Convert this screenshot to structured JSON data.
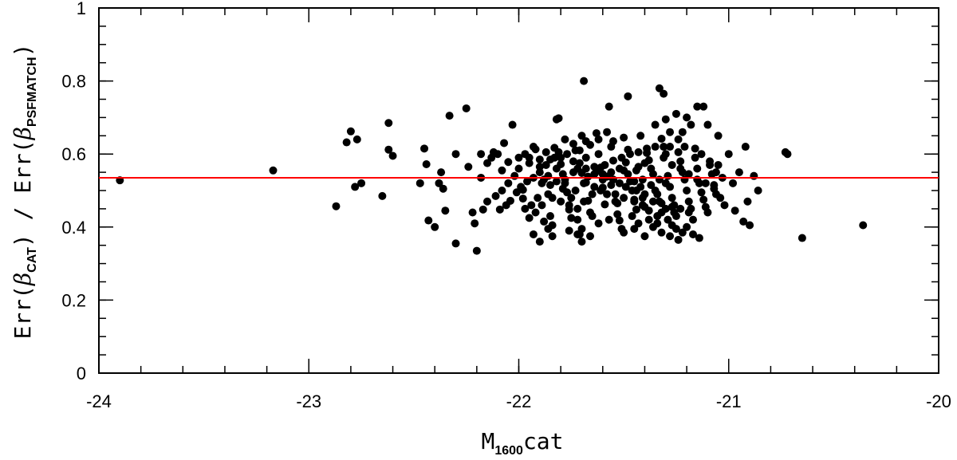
{
  "chart_data": {
    "type": "scatter",
    "xlabel": {
      "main": "M",
      "sub": "1600",
      "suffix": "cat"
    },
    "ylabel": {
      "p1": "Err(",
      "beta1": "β",
      "sub1": "CAT",
      "p2": ") / Err(",
      "beta2": "β",
      "sub2": "PSFMATCH",
      "p3": ")"
    },
    "xlim": [
      -24,
      -20
    ],
    "ylim": [
      0,
      1
    ],
    "xticks": [
      -24,
      -23,
      -22,
      -21,
      -20
    ],
    "xtick_labels": [
      "-24",
      "-23",
      "-22",
      "-21",
      "-20"
    ],
    "yticks": [
      0,
      0.2,
      0.4,
      0.6,
      0.8,
      1
    ],
    "ytick_labels": [
      "0",
      "0.2",
      "0.4",
      "0.6",
      "0.8",
      "1"
    ],
    "grid": false,
    "reference_line": {
      "y": 0.535,
      "color": "#ff0000"
    },
    "marker_color": "#000000",
    "points": [
      [
        -23.9,
        0.528
      ],
      [
        -23.17,
        0.555
      ],
      [
        -22.87,
        0.457
      ],
      [
        -22.8,
        0.662
      ],
      [
        -22.82,
        0.632
      ],
      [
        -22.77,
        0.64
      ],
      [
        -22.75,
        0.52
      ],
      [
        -22.78,
        0.51
      ],
      [
        -22.65,
        0.485
      ],
      [
        -22.62,
        0.685
      ],
      [
        -22.62,
        0.612
      ],
      [
        -22.6,
        0.595
      ],
      [
        -22.47,
        0.52
      ],
      [
        -22.45,
        0.615
      ],
      [
        -22.44,
        0.572
      ],
      [
        -22.43,
        0.418
      ],
      [
        -22.4,
        0.4
      ],
      [
        -22.38,
        0.52
      ],
      [
        -22.37,
        0.55
      ],
      [
        -22.36,
        0.505
      ],
      [
        -22.35,
        0.445
      ],
      [
        -22.33,
        0.705
      ],
      [
        -22.3,
        0.6
      ],
      [
        -22.3,
        0.355
      ],
      [
        -22.25,
        0.725
      ],
      [
        -22.24,
        0.565
      ],
      [
        -22.22,
        0.44
      ],
      [
        -22.21,
        0.41
      ],
      [
        -22.2,
        0.335
      ],
      [
        -22.18,
        0.535
      ],
      [
        -22.17,
        0.448
      ],
      [
        -22.15,
        0.47
      ],
      [
        -22.13,
        0.59
      ],
      [
        -22.12,
        0.605
      ],
      [
        -22.11,
        0.485
      ],
      [
        -22.08,
        0.555
      ],
      [
        -22.07,
        0.63
      ],
      [
        -22.05,
        0.578
      ],
      [
        -22.03,
        0.68
      ],
      [
        -22.0,
        0.56
      ],
      [
        -21.98,
        0.502
      ],
      [
        -21.97,
        0.45
      ],
      [
        -21.95,
        0.425
      ],
      [
        -21.93,
        0.62
      ],
      [
        -21.92,
        0.613
      ],
      [
        -21.9,
        0.585
      ],
      [
        -21.88,
        0.53
      ],
      [
        -21.87,
        0.605
      ],
      [
        -21.86,
        0.49
      ],
      [
        -21.85,
        0.43
      ],
      [
        -21.84,
        0.405
      ],
      [
        -21.83,
        0.617
      ],
      [
        -21.82,
        0.695
      ],
      [
        -21.81,
        0.698
      ],
      [
        -21.8,
        0.572
      ],
      [
        -21.79,
        0.545
      ],
      [
        -21.78,
        0.52
      ],
      [
        -21.77,
        0.495
      ],
      [
        -21.76,
        0.448
      ],
      [
        -21.75,
        0.425
      ],
      [
        -21.73,
        0.61
      ],
      [
        -21.72,
        0.56
      ],
      [
        -21.71,
        0.38
      ],
      [
        -21.7,
        0.395
      ],
      [
        -21.7,
        0.548
      ],
      [
        -21.69,
        0.8
      ],
      [
        -21.68,
        0.522
      ],
      [
        -21.67,
        0.472
      ],
      [
        -21.66,
        0.375
      ],
      [
        -21.65,
        0.43
      ],
      [
        -21.64,
        0.51
      ],
      [
        -21.63,
        0.657
      ],
      [
        -21.62,
        0.6
      ],
      [
        -21.61,
        0.563
      ],
      [
        -21.6,
        0.508
      ],
      [
        -21.59,
        0.462
      ],
      [
        -21.58,
        0.538
      ],
      [
        -21.57,
        0.73
      ],
      [
        -21.56,
        0.62
      ],
      [
        -21.55,
        0.53
      ],
      [
        -21.54,
        0.49
      ],
      [
        -21.53,
        0.465
      ],
      [
        -21.52,
        0.418
      ],
      [
        -21.51,
        0.395
      ],
      [
        -21.5,
        0.555
      ],
      [
        -21.49,
        0.577
      ],
      [
        -21.48,
        0.612
      ],
      [
        -21.47,
        0.525
      ],
      [
        -21.46,
        0.5
      ],
      [
        -21.45,
        0.47
      ],
      [
        -21.44,
        0.448
      ],
      [
        -21.43,
        0.565
      ],
      [
        -21.42,
        0.51
      ],
      [
        -21.41,
        0.48
      ],
      [
        -21.4,
        0.455
      ],
      [
        -21.39,
        0.603
      ],
      [
        -21.38,
        0.583
      ],
      [
        -21.37,
        0.56
      ],
      [
        -21.36,
        0.545
      ],
      [
        -21.35,
        0.5
      ],
      [
        -21.34,
        0.49
      ],
      [
        -21.33,
        0.47
      ],
      [
        -21.32,
        0.44
      ],
      [
        -21.31,
        0.62
      ],
      [
        -21.3,
        0.6
      ],
      [
        -21.3,
        0.52
      ],
      [
        -21.29,
        0.54
      ],
      [
        -21.28,
        0.51
      ],
      [
        -21.27,
        0.48
      ],
      [
        -21.26,
        0.46
      ],
      [
        -21.25,
        0.43
      ],
      [
        -21.24,
        0.605
      ],
      [
        -21.23,
        0.58
      ],
      [
        -21.22,
        0.55
      ],
      [
        -21.21,
        0.53
      ],
      [
        -21.2,
        0.5
      ],
      [
        -21.19,
        0.47
      ],
      [
        -21.18,
        0.45
      ],
      [
        -21.17,
        0.42
      ],
      [
        -21.16,
        0.59
      ],
      [
        -21.15,
        0.56
      ],
      [
        -21.14,
        0.52
      ],
      [
        -21.13,
        0.495
      ],
      [
        -21.12,
        0.475
      ],
      [
        -21.11,
        0.455
      ],
      [
        -21.1,
        0.44
      ],
      [
        -21.09,
        0.58
      ],
      [
        -21.08,
        0.545
      ],
      [
        -21.07,
        0.515
      ],
      [
        -21.06,
        0.49
      ],
      [
        -21.05,
        0.57
      ],
      [
        -21.04,
        0.48
      ],
      [
        -21.03,
        0.535
      ],
      [
        -21.02,
        0.46
      ],
      [
        -21.0,
        0.6
      ],
      [
        -20.98,
        0.52
      ],
      [
        -20.97,
        0.445
      ],
      [
        -20.95,
        0.55
      ],
      [
        -20.93,
        0.415
      ],
      [
        -20.92,
        0.62
      ],
      [
        -20.91,
        0.47
      ],
      [
        -20.9,
        0.405
      ],
      [
        -20.88,
        0.54
      ],
      [
        -20.86,
        0.5
      ],
      [
        -20.72,
        0.6
      ],
      [
        -20.73,
        0.605
      ],
      [
        -20.65,
        0.37
      ],
      [
        -20.36,
        0.405
      ],
      [
        -21.33,
        0.78
      ],
      [
        -21.31,
        0.765
      ],
      [
        -21.48,
        0.758
      ],
      [
        -21.7,
        0.65
      ],
      [
        -21.68,
        0.635
      ],
      [
        -21.55,
        0.635
      ],
      [
        -21.5,
        0.645
      ],
      [
        -21.35,
        0.68
      ],
      [
        -21.3,
        0.695
      ],
      [
        -21.25,
        0.71
      ],
      [
        -21.2,
        0.7
      ],
      [
        -21.15,
        0.73
      ],
      [
        -21.12,
        0.73
      ],
      [
        -21.18,
        0.68
      ],
      [
        -21.22,
        0.66
      ],
      [
        -21.1,
        0.68
      ],
      [
        -21.05,
        0.65
      ],
      [
        -21.28,
        0.66
      ],
      [
        -21.32,
        0.642
      ],
      [
        -21.42,
        0.65
      ],
      [
        -21.58,
        0.66
      ],
      [
        -21.62,
        0.64
      ],
      [
        -21.66,
        0.625
      ],
      [
        -21.74,
        0.628
      ],
      [
        -21.78,
        0.64
      ],
      [
        -21.8,
        0.59
      ],
      [
        -21.85,
        0.585
      ],
      [
        -21.9,
        0.565
      ],
      [
        -21.95,
        0.575
      ],
      [
        -22.0,
        0.59
      ],
      [
        -22.02,
        0.54
      ],
      [
        -22.05,
        0.52
      ],
      [
        -22.08,
        0.5
      ],
      [
        -21.98,
        0.478
      ],
      [
        -21.94,
        0.46
      ],
      [
        -21.92,
        0.44
      ],
      [
        -21.88,
        0.415
      ],
      [
        -21.86,
        0.395
      ],
      [
        -21.84,
        0.375
      ],
      [
        -21.76,
        0.39
      ],
      [
        -21.72,
        0.42
      ],
      [
        -21.66,
        0.44
      ],
      [
        -21.62,
        0.41
      ],
      [
        -21.57,
        0.42
      ],
      [
        -21.53,
        0.435
      ],
      [
        -21.46,
        0.43
      ],
      [
        -21.43,
        0.41
      ],
      [
        -21.38,
        0.42
      ],
      [
        -21.34,
        0.41
      ],
      [
        -21.29,
        0.42
      ],
      [
        -21.27,
        0.405
      ],
      [
        -21.25,
        0.395
      ],
      [
        -21.22,
        0.385
      ],
      [
        -21.2,
        0.4
      ],
      [
        -21.17,
        0.38
      ],
      [
        -21.14,
        0.37
      ],
      [
        -21.19,
        0.44
      ],
      [
        -21.23,
        0.45
      ],
      [
        -21.27,
        0.455
      ],
      [
        -21.32,
        0.465
      ],
      [
        -21.36,
        0.47
      ],
      [
        -21.4,
        0.49
      ],
      [
        -21.44,
        0.5
      ],
      [
        -21.49,
        0.51
      ],
      [
        -21.52,
        0.52
      ],
      [
        -21.56,
        0.515
      ],
      [
        -21.6,
        0.53
      ],
      [
        -21.64,
        0.545
      ],
      [
        -21.68,
        0.56
      ],
      [
        -21.71,
        0.575
      ],
      [
        -21.74,
        0.58
      ],
      [
        -21.77,
        0.6
      ],
      [
        -21.81,
        0.605
      ],
      [
        -21.83,
        0.59
      ],
      [
        -21.87,
        0.57
      ],
      [
        -21.9,
        0.55
      ],
      [
        -21.93,
        0.535
      ],
      [
        -21.96,
        0.525
      ],
      [
        -21.99,
        0.51
      ],
      [
        -22.01,
        0.495
      ],
      [
        -22.04,
        0.472
      ],
      [
        -22.06,
        0.46
      ],
      [
        -22.09,
        0.448
      ],
      [
        -21.97,
        0.6
      ],
      [
        -21.95,
        0.59
      ],
      [
        -21.91,
        0.48
      ],
      [
        -21.89,
        0.46
      ],
      [
        -21.85,
        0.515
      ],
      [
        -21.82,
        0.525
      ],
      [
        -21.79,
        0.505
      ],
      [
        -21.75,
        0.48
      ],
      [
        -21.73,
        0.5
      ],
      [
        -21.69,
        0.52
      ],
      [
        -21.67,
        0.538
      ],
      [
        -21.63,
        0.552
      ],
      [
        -21.59,
        0.57
      ],
      [
        -21.55,
        0.582
      ],
      [
        -21.51,
        0.59
      ],
      [
        -21.47,
        0.6
      ],
      [
        -21.43,
        0.605
      ],
      [
        -21.39,
        0.615
      ],
      [
        -21.35,
        0.62
      ],
      [
        -21.31,
        0.59
      ],
      [
        -21.27,
        0.57
      ],
      [
        -21.23,
        0.56
      ],
      [
        -21.19,
        0.545
      ],
      [
        -21.15,
        0.53
      ],
      [
        -21.11,
        0.52
      ],
      [
        -21.07,
        0.505
      ],
      [
        -21.3,
        0.45
      ],
      [
        -21.26,
        0.44
      ],
      [
        -21.34,
        0.43
      ],
      [
        -21.38,
        0.445
      ],
      [
        -21.41,
        0.46
      ],
      [
        -21.45,
        0.475
      ],
      [
        -21.5,
        0.48
      ],
      [
        -21.54,
        0.47
      ],
      [
        -21.58,
        0.49
      ],
      [
        -21.61,
        0.5
      ],
      [
        -21.65,
        0.49
      ],
      [
        -21.69,
        0.47
      ],
      [
        -21.72,
        0.45
      ],
      [
        -21.76,
        0.46
      ],
      [
        -21.8,
        0.47
      ],
      [
        -21.84,
        0.48
      ],
      [
        -21.28,
        0.62
      ],
      [
        -21.24,
        0.64
      ],
      [
        -21.21,
        0.62
      ],
      [
        -21.16,
        0.615
      ],
      [
        -21.13,
        0.6
      ],
      [
        -21.09,
        0.57
      ],
      [
        -21.06,
        0.55
      ],
      [
        -21.4,
        0.575
      ],
      [
        -21.44,
        0.555
      ],
      [
        -21.48,
        0.545
      ],
      [
        -21.52,
        0.56
      ],
      [
        -21.56,
        0.55
      ],
      [
        -21.6,
        0.545
      ],
      [
        -21.64,
        0.565
      ],
      [
        -21.68,
        0.59
      ],
      [
        -21.71,
        0.61
      ],
      [
        -21.74,
        0.55
      ],
      [
        -21.78,
        0.53
      ],
      [
        -21.82,
        0.56
      ],
      [
        -21.86,
        0.54
      ],
      [
        -21.89,
        0.52
      ],
      [
        -21.33,
        0.53
      ],
      [
        -21.37,
        0.515
      ],
      [
        -21.41,
        0.53
      ],
      [
        -21.45,
        0.525
      ],
      [
        -21.36,
        0.4
      ],
      [
        -21.32,
        0.385
      ],
      [
        -21.28,
        0.375
      ],
      [
        -21.24,
        0.365
      ],
      [
        -21.5,
        0.385
      ],
      [
        -21.45,
        0.395
      ],
      [
        -21.4,
        0.375
      ],
      [
        -21.7,
        0.36
      ],
      [
        -21.72,
        0.38
      ],
      [
        -21.9,
        0.36
      ],
      [
        -21.93,
        0.38
      ],
      [
        -22.1,
        0.6
      ],
      [
        -22.15,
        0.575
      ],
      [
        -22.18,
        0.6
      ]
    ]
  }
}
